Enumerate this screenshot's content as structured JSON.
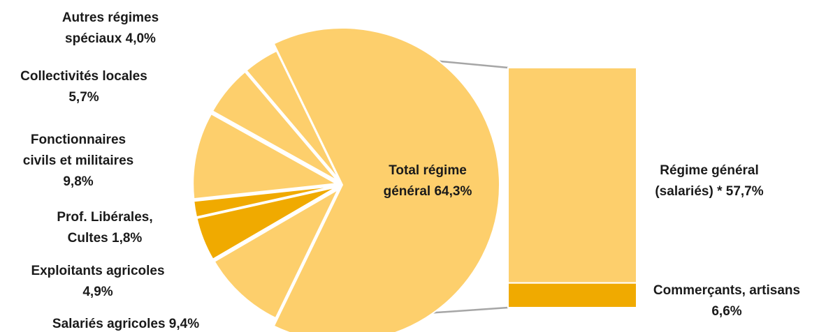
{
  "chart_data": {
    "type": "bar-of-pie",
    "pie": {
      "slices": [
        {
          "label_lines": [
            "Total régime",
            "général  64,3%"
          ],
          "value": 64.3,
          "color": "#FDCF6C"
        },
        {
          "label_lines": [
            "Salariés agricoles 9,4%"
          ],
          "value": 9.4,
          "color": "#FDCF6C"
        },
        {
          "label_lines": [
            "Exploitants agricoles",
            "4,9%"
          ],
          "value": 4.9,
          "color": "#F0AA00"
        },
        {
          "label_lines": [
            "Prof. Libérales,",
            "Cultes 1,8%"
          ],
          "value": 1.8,
          "color": "#F0AA00"
        },
        {
          "label_lines": [
            "Fonctionnaires",
            "civils et militaires",
            "9,8%"
          ],
          "value": 9.8,
          "color": "#FDCF6C"
        },
        {
          "label_lines": [
            "Collectivités locales",
            "5,7%"
          ],
          "value": 5.7,
          "color": "#FDCF6C"
        },
        {
          "label_lines": [
            "Autres régimes",
            "spéciaux 4,0%"
          ],
          "value": 4.0,
          "color": "#FDCF6C"
        }
      ]
    },
    "bar": {
      "segments": [
        {
          "label_lines": [
            "Régime général",
            "(salariés) * 57,7%"
          ],
          "value": 57.7,
          "color": "#FDCF6C"
        },
        {
          "label_lines": [
            "Commerçants, artisans",
            "6,6%"
          ],
          "value": 6.6,
          "color": "#F0AA00"
        }
      ]
    },
    "connector_color": "#A6A6A6"
  }
}
